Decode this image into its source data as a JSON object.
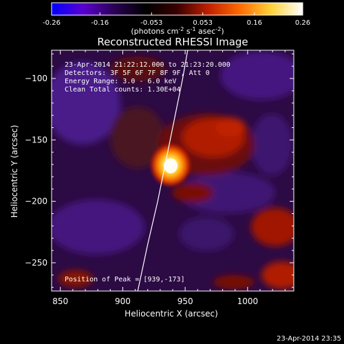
{
  "colorbar": {
    "ticks": [
      -0.26,
      -0.16,
      -0.053,
      0.053,
      0.16,
      0.26
    ],
    "tick_labels": [
      "-0.26",
      "-0.16",
      "-0.053",
      "0.053",
      "0.16",
      "0.26"
    ],
    "units_main": "(photons cm",
    "units_sup1": "-2",
    "units_mid": " s",
    "units_sup2": "-1",
    "units_mid2": " asec",
    "units_sup3": "-2",
    "units_end": ")",
    "colors": [
      "#0000ff",
      "#5a00d0",
      "#2a0055",
      "#000000",
      "#3a0000",
      "#c02000",
      "#ff6a00",
      "#ffd23a",
      "#ffffff"
    ]
  },
  "chart_data": {
    "type": "heatmap",
    "title": "Reconstructed RHESSI Image",
    "xlabel": "Heliocentric X (arcsec)",
    "ylabel": "Heliocentric Y (arcsec)",
    "xlim": [
      843,
      1037
    ],
    "ylim": [
      -273,
      -77
    ],
    "xticks": [
      850,
      900,
      950,
      1000
    ],
    "yticks": [
      -100,
      -150,
      -200,
      -250
    ],
    "peak": {
      "x": 939,
      "y": -173
    },
    "info_lines": [
      "23-Apr-2014 21:22:12.000 to 21:23:20.000",
      "Detectors: 3F 5F 6F 7F 8F 9F, Att 0",
      "Energy Range: 3.0 - 6.0 keV",
      "Clean    Total counts: 1.30E+04"
    ],
    "peak_label": "Position of Peak = [939,-173]",
    "limb_points": [
      [
        912,
        -273
      ],
      [
        920,
        -235
      ],
      [
        928,
        -200
      ],
      [
        935,
        -165
      ],
      [
        942,
        -130
      ],
      [
        948,
        -100
      ],
      [
        952,
        -77
      ]
    ]
  },
  "timestamp": "23-Apr-2014 23:35"
}
